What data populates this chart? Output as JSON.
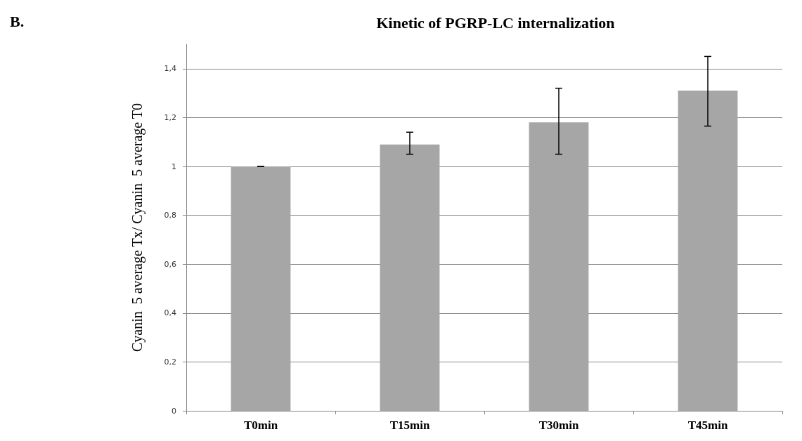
{
  "chart_data": {
    "type": "bar",
    "title": "Kinetic of PGRP-LC internalization",
    "ylabel": "Cyanin  5 average Tx/ Cyanin  5 average T0",
    "annotations": [
      "B."
    ],
    "categories": [
      "T0min",
      "T15min",
      "T30min",
      "T45min"
    ],
    "values": [
      1.0,
      1.09,
      1.18,
      1.31
    ],
    "errors": [
      0,
      [
        1.05,
        1.14
      ],
      [
        1.05,
        1.32
      ],
      [
        1.165,
        1.45
      ]
    ],
    "color": "#a6a6a6",
    "ylim": [
      0,
      1.5
    ],
    "yticks": [
      0,
      {
        "value": 0.2,
        "label": "0,2"
      },
      {
        "value": 0.4,
        "label": "0,4"
      },
      {
        "value": 0.6,
        "label": "0,6"
      },
      {
        "value": 0.8,
        "label": "0,8"
      },
      1,
      {
        "value": 1.2,
        "label": "1,2"
      },
      {
        "value": 1.4,
        "label": "1,4"
      }
    ],
    "grid": "y"
  }
}
